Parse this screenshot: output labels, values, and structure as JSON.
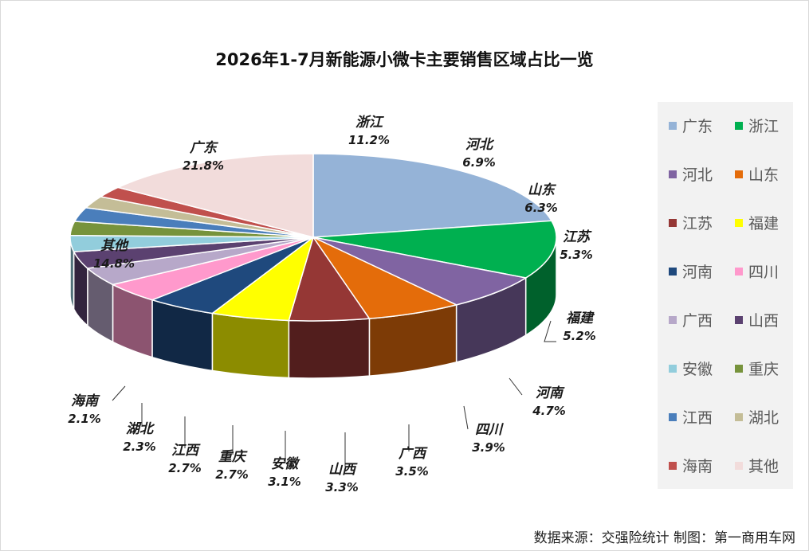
{
  "chart_data": {
    "type": "pie",
    "title": "2026年1-7月新能源小微卡主要销售区域占比一览",
    "unit": "%",
    "legend_position": "right",
    "categories": [
      "广东",
      "浙江",
      "河北",
      "山东",
      "江苏",
      "福建",
      "河南",
      "四川",
      "广西",
      "山西",
      "安徽",
      "重庆",
      "江西",
      "湖北",
      "海南",
      "其他"
    ],
    "values": [
      21.8,
      11.2,
      6.9,
      6.3,
      5.3,
      5.2,
      4.7,
      3.9,
      3.5,
      3.3,
      3.1,
      2.7,
      2.7,
      2.3,
      2.1,
      14.8
    ],
    "value_labels": [
      "21.8%",
      "11.2%",
      "6.9%",
      "6.3%",
      "5.3%",
      "5.2%",
      "4.7%",
      "3.9%",
      "3.5%",
      "3.3%",
      "3.1%",
      "2.7%",
      "2.7%",
      "2.3%",
      "2.1%",
      "14.8%"
    ],
    "colors": [
      "#95b3d7",
      "#00b050",
      "#8064a2",
      "#e46c0a",
      "#953735",
      "#ffff00",
      "#1f497d",
      "#ff99cc",
      "#b7a8c9",
      "#5b4170",
      "#92cddc",
      "#77933c",
      "#4a7ebb",
      "#c4bd97",
      "#c0504d",
      "#f2dcdb"
    ]
  },
  "source_note": "数据来源：交强险统计   制图：第一商用车网"
}
